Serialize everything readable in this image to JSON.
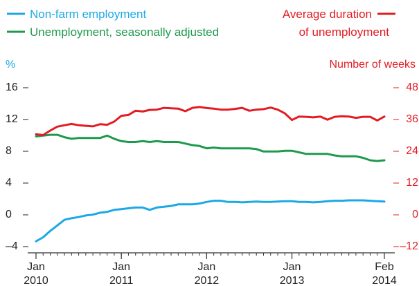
{
  "chart_data": {
    "type": "line",
    "legend": {
      "left": [
        {
          "label": "Non-farm employment",
          "color": "#1ba9e6"
        },
        {
          "label": "Unemployment, seasonally adjusted",
          "color": "#1e9a4c"
        }
      ],
      "right": [
        {
          "label_line1": "Average duration",
          "label_line2": "of unemployment",
          "color": "#e31b23"
        }
      ]
    },
    "left_axis": {
      "unit_label": "%",
      "unit_color": "#1ba9e6",
      "ylim": [
        -4,
        16
      ],
      "ticks": [
        {
          "value": 16,
          "label": "16"
        },
        {
          "value": 12,
          "label": "12"
        },
        {
          "value": 8,
          "label": "8"
        },
        {
          "value": 4,
          "label": "4"
        },
        {
          "value": 0,
          "label": "0"
        },
        {
          "value": -4,
          "label": "–4"
        }
      ]
    },
    "right_axis": {
      "unit_label": "Number of weeks",
      "color": "#e31b23",
      "ylim": [
        -12,
        48
      ],
      "ticks": [
        {
          "value": 48,
          "label": "48"
        },
        {
          "value": 36,
          "label": "36"
        },
        {
          "value": 24,
          "label": "24"
        },
        {
          "value": 12,
          "label": "12"
        },
        {
          "value": 0,
          "label": "0"
        },
        {
          "value": -12,
          "label": "–12"
        }
      ]
    },
    "x_axis": {
      "start": "2010-01",
      "end": "2014-02",
      "ticks": [
        {
          "month_index": 0,
          "line1": "Jan",
          "line2": "2010"
        },
        {
          "month_index": 12,
          "line1": "Jan",
          "line2": "2011"
        },
        {
          "month_index": 24,
          "line1": "Jan",
          "line2": "2012"
        },
        {
          "month_index": 36,
          "line1": "Jan",
          "line2": "2013"
        },
        {
          "month_index": 49,
          "line1": "Feb",
          "line2": "2014"
        }
      ]
    },
    "series": [
      {
        "name": "Non-farm employment",
        "axis": "left",
        "color": "#1ba9e6",
        "values": [
          -3.5,
          -3.0,
          -2.2,
          -1.5,
          -0.8,
          -0.6,
          -0.45,
          -0.25,
          -0.15,
          0.1,
          0.2,
          0.45,
          0.55,
          0.65,
          0.75,
          0.75,
          0.45,
          0.75,
          0.85,
          0.95,
          1.15,
          1.15,
          1.15,
          1.25,
          1.45,
          1.6,
          1.6,
          1.45,
          1.45,
          1.4,
          1.45,
          1.5,
          1.45,
          1.45,
          1.5,
          1.55,
          1.55,
          1.45,
          1.45,
          1.4,
          1.45,
          1.55,
          1.6,
          1.6,
          1.65,
          1.65,
          1.65,
          1.6,
          1.55,
          1.5
        ]
      },
      {
        "name": "Unemployment, seasonally adjusted",
        "axis": "left",
        "color": "#1e9a4c",
        "values": [
          9.7,
          9.8,
          9.9,
          9.9,
          9.6,
          9.4,
          9.5,
          9.5,
          9.5,
          9.5,
          9.8,
          9.4,
          9.1,
          9.0,
          9.0,
          9.1,
          9.0,
          9.1,
          9.0,
          9.0,
          9.0,
          8.8,
          8.6,
          8.5,
          8.2,
          8.3,
          8.2,
          8.2,
          8.2,
          8.2,
          8.2,
          8.1,
          7.8,
          7.8,
          7.8,
          7.9,
          7.9,
          7.7,
          7.5,
          7.5,
          7.5,
          7.5,
          7.3,
          7.2,
          7.2,
          7.2,
          7.0,
          6.7,
          6.6,
          6.7
        ]
      },
      {
        "name": "Average duration of unemployment",
        "axis": "right",
        "color": "#e31b23",
        "values": [
          29.9,
          29.6,
          31.3,
          32.8,
          33.3,
          33.8,
          33.3,
          33.1,
          32.9,
          33.7,
          33.5,
          34.7,
          36.9,
          37.2,
          38.8,
          38.5,
          39.1,
          39.2,
          39.9,
          39.7,
          39.6,
          38.6,
          39.9,
          40.2,
          39.8,
          39.6,
          39.2,
          39.2,
          39.5,
          39.9,
          38.8,
          39.2,
          39.4,
          40.0,
          39.2,
          37.8,
          35.3,
          36.6,
          36.5,
          36.3,
          36.6,
          35.4,
          36.5,
          36.7,
          36.6,
          36.1,
          36.5,
          36.5,
          35.1,
          36.6
        ]
      }
    ]
  }
}
